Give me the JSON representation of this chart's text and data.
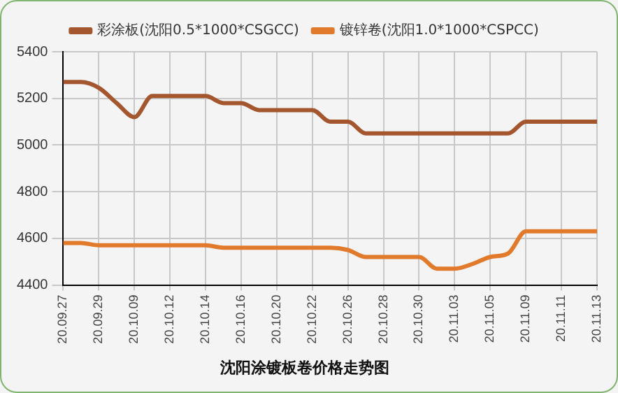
{
  "chart_data": {
    "type": "line",
    "title": "沈阳涂镀板卷价格走势图",
    "categories": [
      "20.09.27",
      null,
      "20.09.29",
      null,
      "20.10.09",
      null,
      "20.10.12",
      null,
      "20.10.14",
      null,
      "20.10.16",
      null,
      "20.10.20",
      null,
      "20.10.22",
      null,
      "20.10.26",
      null,
      "20.10.28",
      null,
      "20.10.30",
      null,
      "20.11.03",
      null,
      "20.11.05",
      null,
      "20.11.09",
      null,
      "20.11.11",
      null,
      "20.11.13"
    ],
    "series": [
      {
        "name": "彩涂板(沈阳0.5*1000*CSGCC)",
        "color": "#a4562e",
        "values": [
          5270,
          5270,
          5245,
          5180,
          5120,
          5210,
          5210,
          5210,
          5210,
          5180,
          5180,
          5150,
          5150,
          5150,
          5150,
          5100,
          5100,
          5050,
          5050,
          5050,
          5050,
          5050,
          5050,
          5050,
          5050,
          5050,
          5100,
          5100,
          5100,
          5100,
          5100
        ]
      },
      {
        "name": "镀锌卷(沈阳1.0*1000*CSPCC)",
        "color": "#e27a2c",
        "values": [
          4580,
          4580,
          4570,
          4570,
          4570,
          4570,
          4570,
          4570,
          4570,
          4560,
          4560,
          4560,
          4560,
          4560,
          4560,
          4560,
          4550,
          4520,
          4520,
          4520,
          4520,
          4470,
          4470,
          4490,
          4520,
          4535,
          4630,
          4630,
          4630,
          4630,
          4630
        ]
      }
    ],
    "ylim": [
      4400,
      5400
    ],
    "yticks": [
      4400,
      4600,
      4800,
      5000,
      5200,
      5400
    ],
    "grid": true,
    "legend": "top",
    "marker": "none",
    "line_style": "solid"
  }
}
